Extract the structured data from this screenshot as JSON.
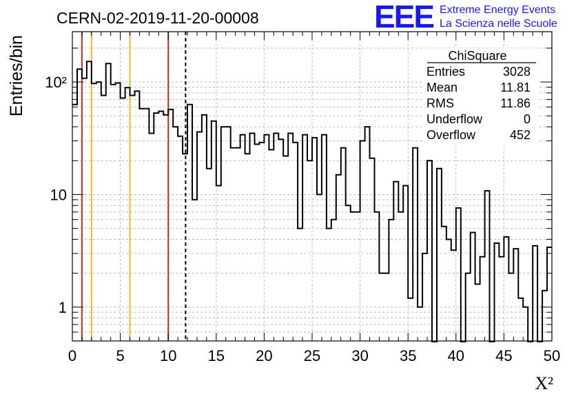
{
  "chart_data": {
    "type": "bar",
    "subtype": "step-histogram",
    "title": "CERN-02-2019-11-20-00008",
    "xlabel": "X²",
    "ylabel": "Entries/bin",
    "xlim": [
      0,
      50
    ],
    "ylim": [
      0.5,
      280
    ],
    "yscale": "log",
    "grid": true,
    "bin_width": 0.5,
    "x_ticks": [
      "0",
      "5",
      "10",
      "15",
      "20",
      "25",
      "30",
      "35",
      "40",
      "45",
      "50"
    ],
    "x_tick_values": [
      0,
      5,
      10,
      15,
      20,
      25,
      30,
      35,
      40,
      45,
      50
    ],
    "y_ticks": [
      "1",
      "10",
      "10²"
    ],
    "y_tick_values": [
      1,
      10,
      100
    ],
    "values": [
      63,
      130,
      108,
      152,
      97,
      100,
      76,
      146,
      95,
      98,
      72,
      89,
      76,
      83,
      58,
      58,
      35,
      53,
      55,
      51,
      57,
      40,
      33,
      23,
      63,
      9,
      36,
      51,
      17,
      45,
      12,
      40,
      40,
      26,
      26,
      34,
      23,
      35,
      28,
      29,
      34,
      25,
      35,
      31,
      22,
      35,
      29,
      5,
      34,
      20,
      32,
      10,
      34,
      5,
      6,
      15,
      26,
      8,
      7,
      7,
      30,
      40,
      21,
      7,
      2,
      2,
      6,
      13,
      7,
      12,
      1.2,
      26,
      1.0,
      3,
      20,
      0.4,
      17,
      5.2,
      4,
      3.2,
      7.6,
      0.3,
      2.0,
      4.6,
      1.6,
      2.8,
      10.8,
      0.4,
      3.7,
      2.8,
      4.2,
      2.0,
      3.3,
      1.2,
      1.0,
      0.4,
      3.5,
      0.3,
      1.4,
      3.4
    ],
    "vlines": [
      {
        "x": 1,
        "color": "#dd2222",
        "style": "solid"
      },
      {
        "x": 2,
        "color": "#eebb22",
        "style": "solid"
      },
      {
        "x": 6,
        "color": "#eebb22",
        "style": "solid"
      },
      {
        "x": 10,
        "color": "#dd2222",
        "style": "solid"
      },
      {
        "x": 11.81,
        "color": "#000000",
        "style": "dashed"
      }
    ],
    "stats": {
      "name": "ChiSquare",
      "rows": [
        {
          "label": "Entries",
          "value": "3028"
        },
        {
          "label": "Mean",
          "value": "11.81"
        },
        {
          "label": "RMS",
          "value": "11.86"
        },
        {
          "label": "Underflow",
          "value": "0"
        },
        {
          "label": "Overflow",
          "value": "452"
        }
      ]
    },
    "stats_placement": "top-right"
  },
  "logo": {
    "text": "EEE",
    "line1": "Extreme Energy Events",
    "line2": "La Scienza nelle Scuole",
    "color": "#1a1aee"
  }
}
